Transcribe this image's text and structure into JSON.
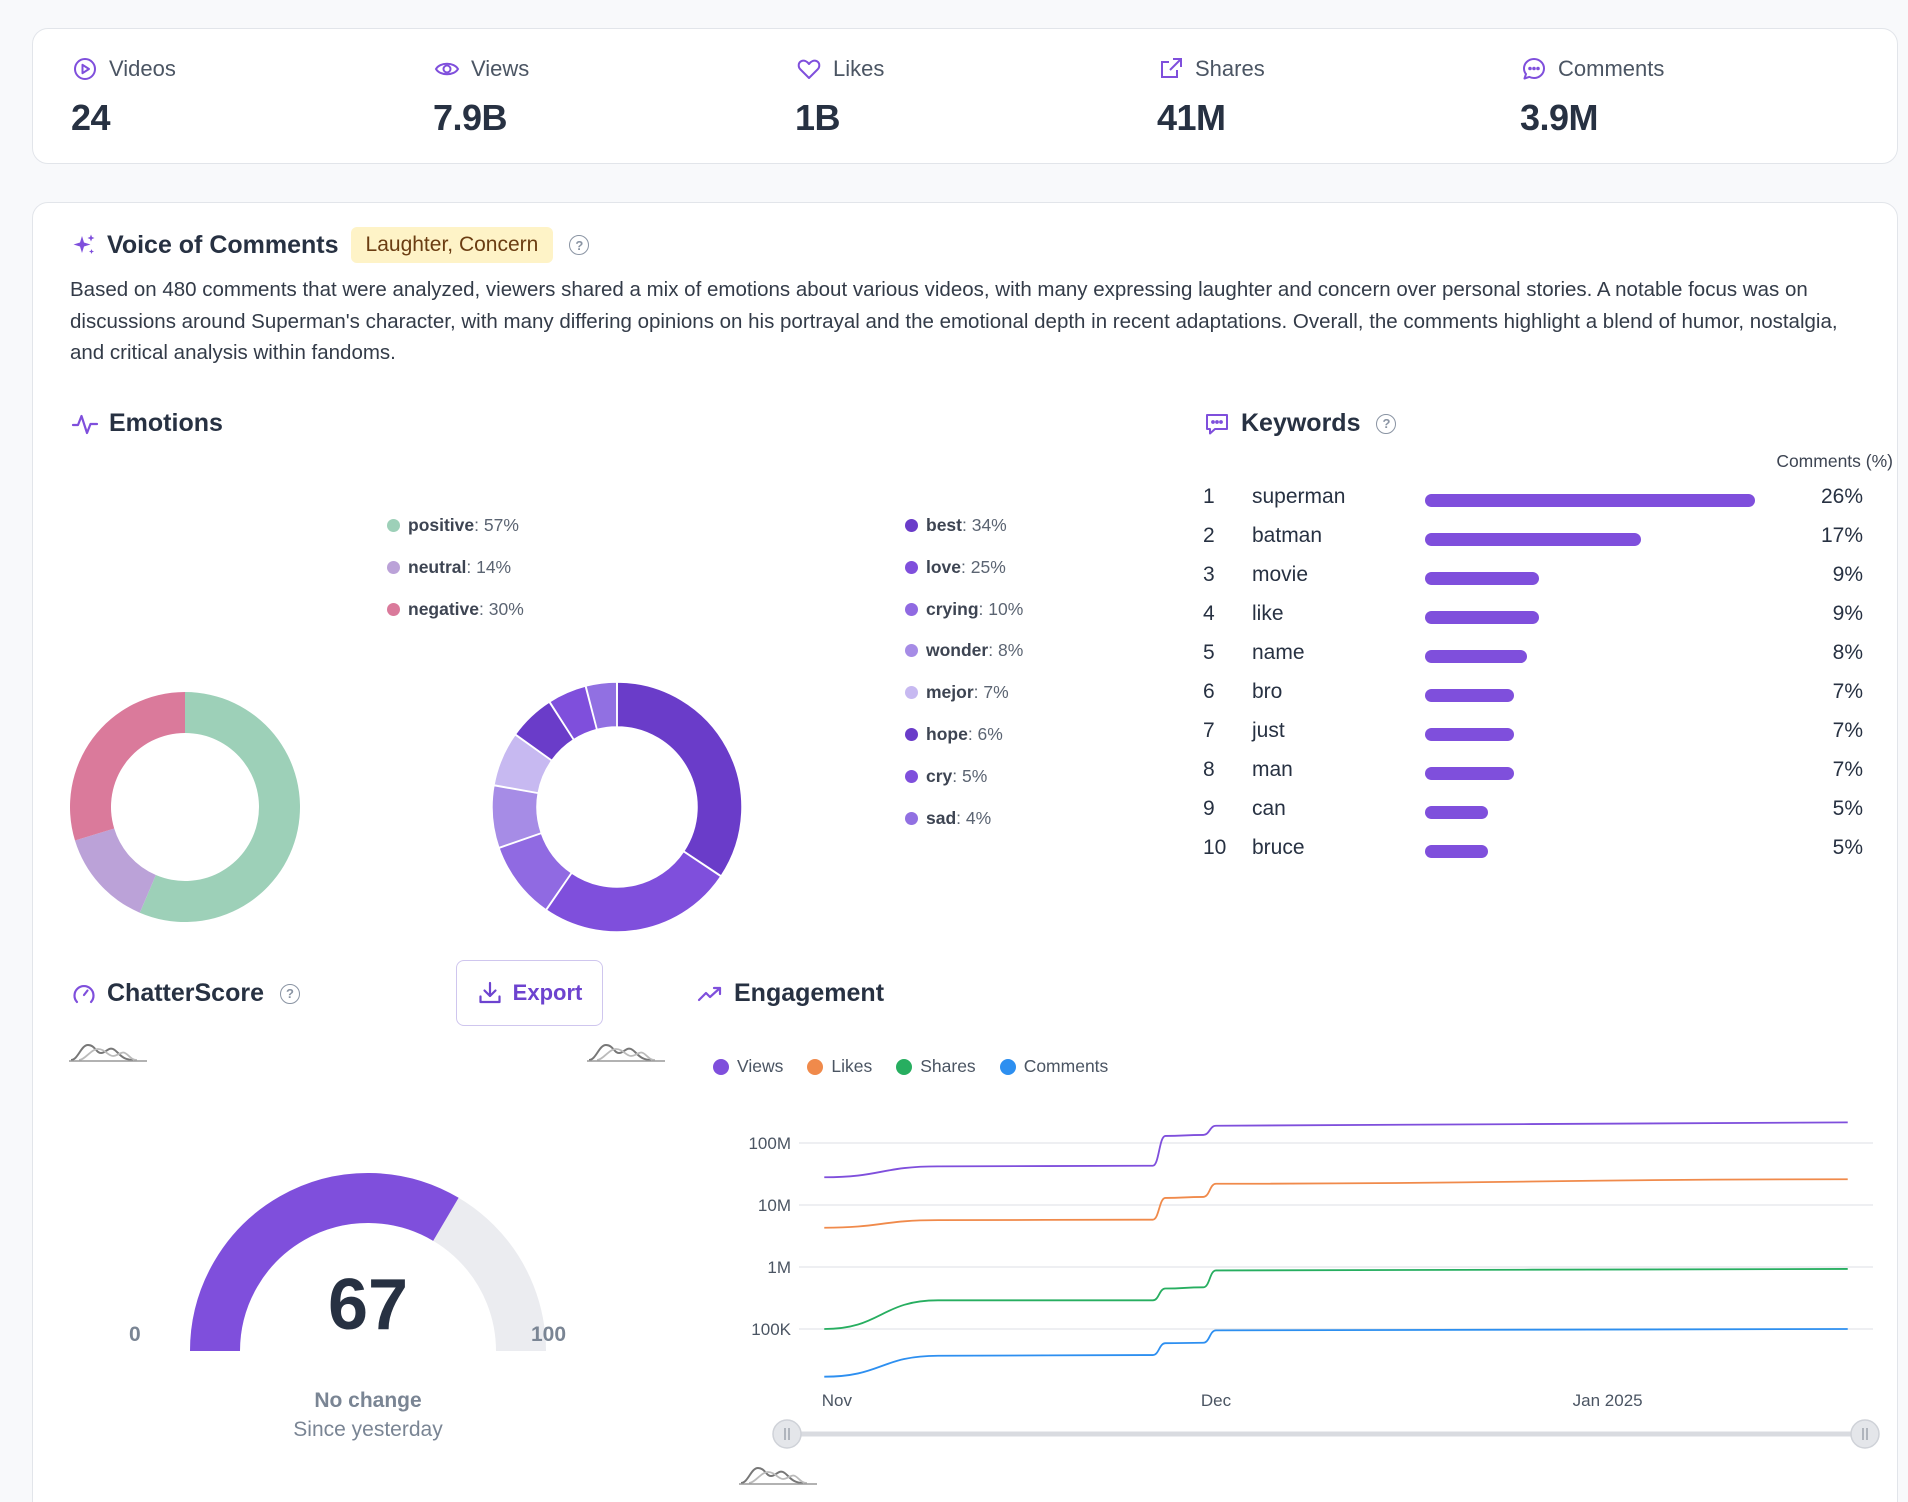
{
  "stats": [
    {
      "label": "Videos",
      "value": "24",
      "icon": "play-circle-icon"
    },
    {
      "label": "Views",
      "value": "7.9B",
      "icon": "eye-icon"
    },
    {
      "label": "Likes",
      "value": "1B",
      "icon": "heart-icon"
    },
    {
      "label": "Shares",
      "value": "41M",
      "icon": "share-icon"
    },
    {
      "label": "Comments",
      "value": "3.9M",
      "icon": "comment-icon"
    }
  ],
  "voice": {
    "title": "Voice of Comments",
    "tag": "Laughter, Concern",
    "summary": "Based on 480 comments that were analyzed, viewers shared a mix of emotions about various videos, with many expressing laughter and concern over personal stories. A notable focus was on discussions around Superman's character, with many differing opinions on his portrayal and the emotional depth in recent adaptations. Overall, the comments highlight a blend of humor, nostalgia, and critical analysis within fandoms."
  },
  "emotions": {
    "title": "Emotions",
    "sentiment": [
      {
        "label": "positive",
        "pct": 57,
        "text": ": 57%",
        "color": "#9dd0b8"
      },
      {
        "label": "neutral",
        "pct": 14,
        "text": ": 14%",
        "color": "#bba2d8"
      },
      {
        "label": "negative",
        "pct": 30,
        "text": ": 30%",
        "color": "#da7a9b"
      }
    ],
    "words": [
      {
        "label": "best",
        "pct": 34,
        "text": ": 34%",
        "color": "#6a3cc9"
      },
      {
        "label": "love",
        "pct": 25,
        "text": ": 25%",
        "color": "#7f4fdc"
      },
      {
        "label": "crying",
        "pct": 10,
        "text": ": 10%",
        "color": "#906ae2"
      },
      {
        "label": "wonder",
        "pct": 8,
        "text": ": 8%",
        "color": "#a68ce6"
      },
      {
        "label": "mejor",
        "pct": 7,
        "text": ": 7%",
        "color": "#c7b9f1"
      },
      {
        "label": "hope",
        "pct": 6,
        "text": ": 6%",
        "color": "#6a3cc9"
      },
      {
        "label": "cry",
        "pct": 5,
        "text": ": 5%",
        "color": "#7f4fdc"
      },
      {
        "label": "sad",
        "pct": 4,
        "text": ": 4%",
        "color": "#9170e2"
      }
    ]
  },
  "keywords": {
    "title": "Keywords",
    "column": "Comments (%)",
    "items": [
      {
        "rank": "1",
        "word": "superman",
        "pct": 26,
        "text": "26%"
      },
      {
        "rank": "2",
        "word": "batman",
        "pct": 17,
        "text": "17%"
      },
      {
        "rank": "3",
        "word": "movie",
        "pct": 9,
        "text": "9%"
      },
      {
        "rank": "4",
        "word": "like",
        "pct": 9,
        "text": "9%"
      },
      {
        "rank": "5",
        "word": "name",
        "pct": 8,
        "text": "8%"
      },
      {
        "rank": "6",
        "word": "bro",
        "pct": 7,
        "text": "7%"
      },
      {
        "rank": "7",
        "word": "just",
        "pct": 7,
        "text": "7%"
      },
      {
        "rank": "8",
        "word": "man",
        "pct": 7,
        "text": "7%"
      },
      {
        "rank": "9",
        "word": "can",
        "pct": 5,
        "text": "5%"
      },
      {
        "rank": "10",
        "word": "bruce",
        "pct": 5,
        "text": "5%"
      }
    ]
  },
  "chatter": {
    "title": "ChatterScore",
    "export": "Export",
    "score": 67,
    "score_text": "67",
    "min": "0",
    "max": "100",
    "change": "No change",
    "since": "Since yesterday",
    "fill_color": "#7f4fdc",
    "track_color": "#ebecf0"
  },
  "engagement": {
    "title": "Engagement",
    "legend": [
      {
        "name": "Views",
        "color": "#7f4fdc"
      },
      {
        "name": "Likes",
        "color": "#f08a4b"
      },
      {
        "name": "Shares",
        "color": "#27ae60"
      },
      {
        "name": "Comments",
        "color": "#2d8ff0"
      }
    ]
  },
  "chart_data": {
    "type": "line",
    "yscale": "log",
    "yticks": [
      "100K",
      "1M",
      "10M",
      "100M"
    ],
    "xticks": [
      "Nov",
      "Dec",
      "Jan 2025"
    ],
    "series": [
      {
        "name": "Views",
        "color": "#7f4fdc",
        "points": [
          [
            "2024-10-31",
            28000000
          ],
          [
            "2024-11-09",
            42000000
          ],
          [
            "2024-11-26",
            43000000
          ],
          [
            "2024-11-27",
            130000000
          ],
          [
            "2024-11-30",
            135000000
          ],
          [
            "2024-12-01",
            190000000
          ],
          [
            "2025-01-20",
            215000000
          ]
        ]
      },
      {
        "name": "Likes",
        "color": "#f08a4b",
        "points": [
          [
            "2024-10-31",
            4300000
          ],
          [
            "2024-11-09",
            5700000
          ],
          [
            "2024-11-26",
            5800000
          ],
          [
            "2024-11-27",
            13000000
          ],
          [
            "2024-11-30",
            13500000
          ],
          [
            "2024-12-01",
            22000000
          ],
          [
            "2025-01-20",
            26000000
          ]
        ]
      },
      {
        "name": "Shares",
        "color": "#27ae60",
        "points": [
          [
            "2024-10-31",
            100000
          ],
          [
            "2024-11-09",
            290000
          ],
          [
            "2024-11-26",
            290000
          ],
          [
            "2024-11-27",
            450000
          ],
          [
            "2024-11-30",
            470000
          ],
          [
            "2024-12-01",
            880000
          ],
          [
            "2025-01-20",
            930000
          ]
        ]
      },
      {
        "name": "Comments",
        "color": "#2d8ff0",
        "points": [
          [
            "2024-10-31",
            17000
          ],
          [
            "2024-11-09",
            37000
          ],
          [
            "2024-11-26",
            38000
          ],
          [
            "2024-11-27",
            59000
          ],
          [
            "2024-11-30",
            60000
          ],
          [
            "2024-12-01",
            95000
          ],
          [
            "2025-01-20",
            100000
          ]
        ]
      }
    ]
  }
}
